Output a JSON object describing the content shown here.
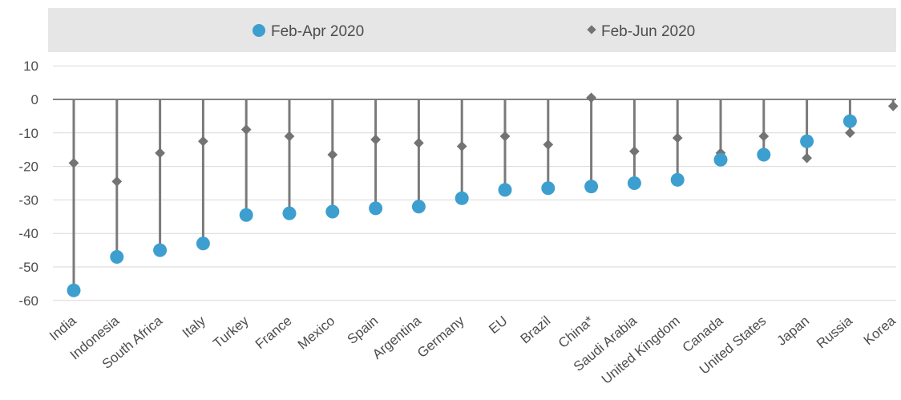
{
  "chart_data": {
    "type": "scatter",
    "legend_position": "top",
    "legend": [
      {
        "name": "Feb-Apr 2020",
        "marker": "circle",
        "color": "#3d9fcf"
      },
      {
        "name": "Feb-Jun 2020",
        "marker": "diamond",
        "color": "#737373"
      }
    ],
    "categories": [
      "India",
      "Indonesia",
      "South Africa",
      "Italy",
      "Turkey",
      "France",
      "Mexico",
      "Spain",
      "Argentina",
      "Germany",
      "EU",
      "Brazil",
      "China*",
      "Saudi Arabia",
      "United Kingdom",
      "Canada",
      "United States",
      "Japan",
      "Russia",
      "Korea"
    ],
    "series": [
      {
        "name": "Feb-Apr 2020",
        "values": [
          -57,
          -47,
          -45,
          -43,
          -34.5,
          -34,
          -33.5,
          -32.5,
          -32,
          -29.5,
          -27,
          -26.5,
          -26,
          -25,
          -24,
          -18,
          -16.5,
          -12.5,
          -6.5,
          null
        ]
      },
      {
        "name": "Feb-Jun 2020",
        "values": [
          -19,
          -24.5,
          -16,
          -12.5,
          -9,
          -11,
          -16.5,
          -12,
          -13,
          -14,
          -11,
          -13.5,
          0.5,
          -15.5,
          -11.5,
          -16,
          -11,
          -17.5,
          -10,
          -2
        ]
      }
    ],
    "yticks": [
      10,
      0,
      -10,
      -20,
      -30,
      -40,
      -50,
      -60
    ],
    "ylim": [
      -62,
      12
    ],
    "grid": true
  }
}
